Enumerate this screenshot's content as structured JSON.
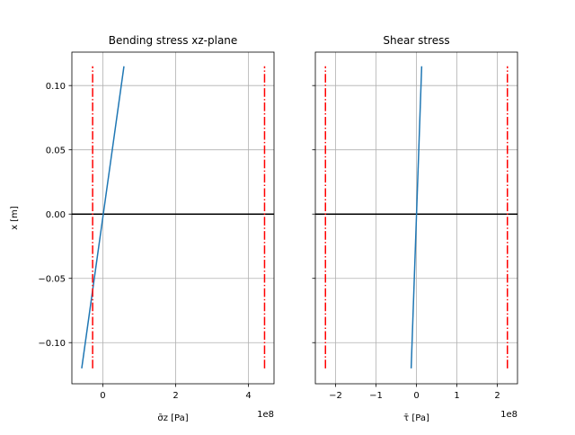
{
  "chart_data": [
    {
      "type": "line",
      "title": "Bending stress xz-plane",
      "xlabel": "σ̄z [Pa]",
      "ylabel": "x [m]",
      "x_offset_label": "1e8",
      "xlim": [
        -0.85,
        4.7
      ],
      "ylim": [
        -0.132,
        0.126
      ],
      "x_scale": 100000000,
      "xticks": [
        0,
        2,
        4
      ],
      "xtick_labels": [
        "0",
        "2",
        "4"
      ],
      "yticks": [
        -0.1,
        -0.05,
        0.0,
        0.05,
        0.1
      ],
      "ytick_labels": [
        "−0.10",
        "−0.05",
        "0.00",
        "0.05",
        "0.10"
      ],
      "grid": true,
      "series": [
        {
          "x": [
            -0.58,
            0.58
          ],
          "y": [
            -0.12,
            0.115
          ],
          "color": "#1f77b4",
          "style": "solid"
        },
        {
          "x": [
            -0.28,
            -0.28
          ],
          "y": [
            -0.12,
            0.115
          ],
          "color": "#ff0000",
          "style": "dashdot"
        },
        {
          "x": [
            4.44,
            4.44
          ],
          "y": [
            -0.12,
            0.115
          ],
          "color": "#ff0000",
          "style": "dashdot"
        }
      ],
      "hlines": [
        {
          "y": 0.0,
          "color": "#000000"
        }
      ]
    },
    {
      "type": "line",
      "title": "Shear stress",
      "xlabel": "τ̄ [Pa]",
      "ylabel": "",
      "x_offset_label": "1e8",
      "xlim": [
        -2.5,
        2.5
      ],
      "ylim": [
        -0.132,
        0.126
      ],
      "x_scale": 100000000,
      "xticks": [
        -2,
        -1,
        0,
        1,
        2
      ],
      "xtick_labels": [
        "−2",
        "−1",
        "0",
        "1",
        "2"
      ],
      "yticks": [
        -0.1,
        -0.05,
        0.0,
        0.05,
        0.1
      ],
      "ytick_labels": [],
      "grid": true,
      "series": [
        {
          "x": [
            -0.13,
            0.13
          ],
          "y": [
            -0.12,
            0.115
          ],
          "color": "#1f77b4",
          "style": "solid"
        },
        {
          "x": [
            -2.25,
            -2.25
          ],
          "y": [
            -0.12,
            0.115
          ],
          "color": "#ff0000",
          "style": "dashdot"
        },
        {
          "x": [
            2.25,
            2.25
          ],
          "y": [
            -0.12,
            0.115
          ],
          "color": "#ff0000",
          "style": "dashdot"
        }
      ],
      "hlines": [
        {
          "y": 0.0,
          "color": "#000000"
        }
      ]
    }
  ]
}
